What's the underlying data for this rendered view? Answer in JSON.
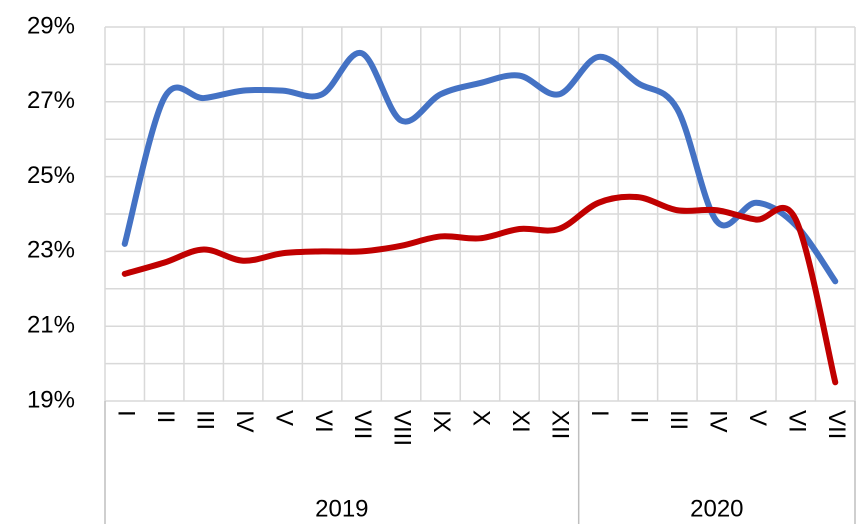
{
  "chart_data": {
    "type": "line",
    "categories": [
      "I",
      "II",
      "III",
      "IV",
      "V",
      "VI",
      "VII",
      "VIII",
      "IX",
      "X",
      "XI",
      "XII",
      "I",
      "II",
      "III",
      "IV",
      "V",
      "VI",
      "VII"
    ],
    "groups": [
      {
        "label": "2019",
        "count": 12
      },
      {
        "label": "2020",
        "count": 7
      }
    ],
    "series": [
      {
        "color": "#4472c4",
        "values": [
          23.2,
          27.1,
          27.1,
          27.3,
          27.3,
          27.2,
          28.3,
          26.5,
          27.2,
          27.5,
          27.7,
          27.2,
          28.2,
          27.5,
          26.8,
          23.8,
          24.3,
          23.7,
          22.2
        ]
      },
      {
        "color": "#c00000",
        "values": [
          22.4,
          22.7,
          23.05,
          22.75,
          22.95,
          23.0,
          23.0,
          23.15,
          23.4,
          23.35,
          23.6,
          23.6,
          24.3,
          24.45,
          24.1,
          24.1,
          23.85,
          23.85,
          19.5
        ]
      }
    ],
    "ylim": [
      19,
      29
    ],
    "yticks": [
      {
        "value": 19,
        "label": "19%"
      },
      {
        "value": 21,
        "label": "21%"
      },
      {
        "value": 23,
        "label": "23%"
      },
      {
        "value": 25,
        "label": "25%"
      },
      {
        "value": 27,
        "label": "27%"
      },
      {
        "value": 29,
        "label": "29%"
      }
    ],
    "yminor": [
      20,
      22,
      24,
      26,
      28
    ],
    "grid": true
  }
}
